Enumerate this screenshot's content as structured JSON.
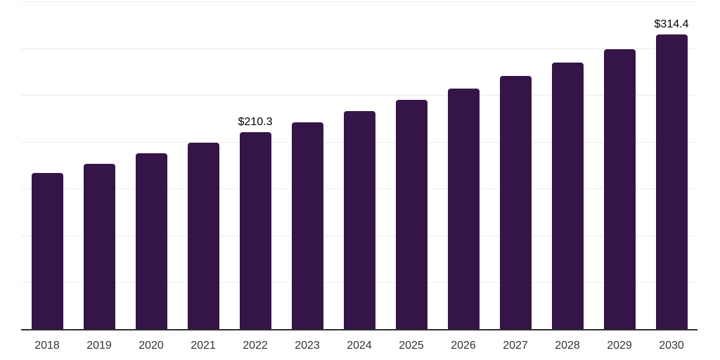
{
  "chart_data": {
    "type": "bar",
    "title": "",
    "xlabel": "",
    "ylabel": "",
    "categories": [
      "2018",
      "2019",
      "2020",
      "2021",
      "2022",
      "2023",
      "2024",
      "2025",
      "2026",
      "2027",
      "2028",
      "2029",
      "2030"
    ],
    "values": [
      166.6,
      176.7,
      187.9,
      199.2,
      210.3,
      221.2,
      232.6,
      244.6,
      257.2,
      270.5,
      284.4,
      299.1,
      314.4
    ],
    "value_labels": {
      "4": "$210.3",
      "12": "$314.4"
    },
    "ylim": [
      0,
      350
    ],
    "grid_step": 50,
    "grid": true,
    "legend": false,
    "y_tick_labels_visible": false,
    "colors": {
      "bar": "#351548",
      "gridline": "#ececec",
      "axis_line": "#2f2f2f",
      "x_tick_label": "#333333",
      "value_label": "#000000",
      "background": "#ffffff"
    }
  }
}
